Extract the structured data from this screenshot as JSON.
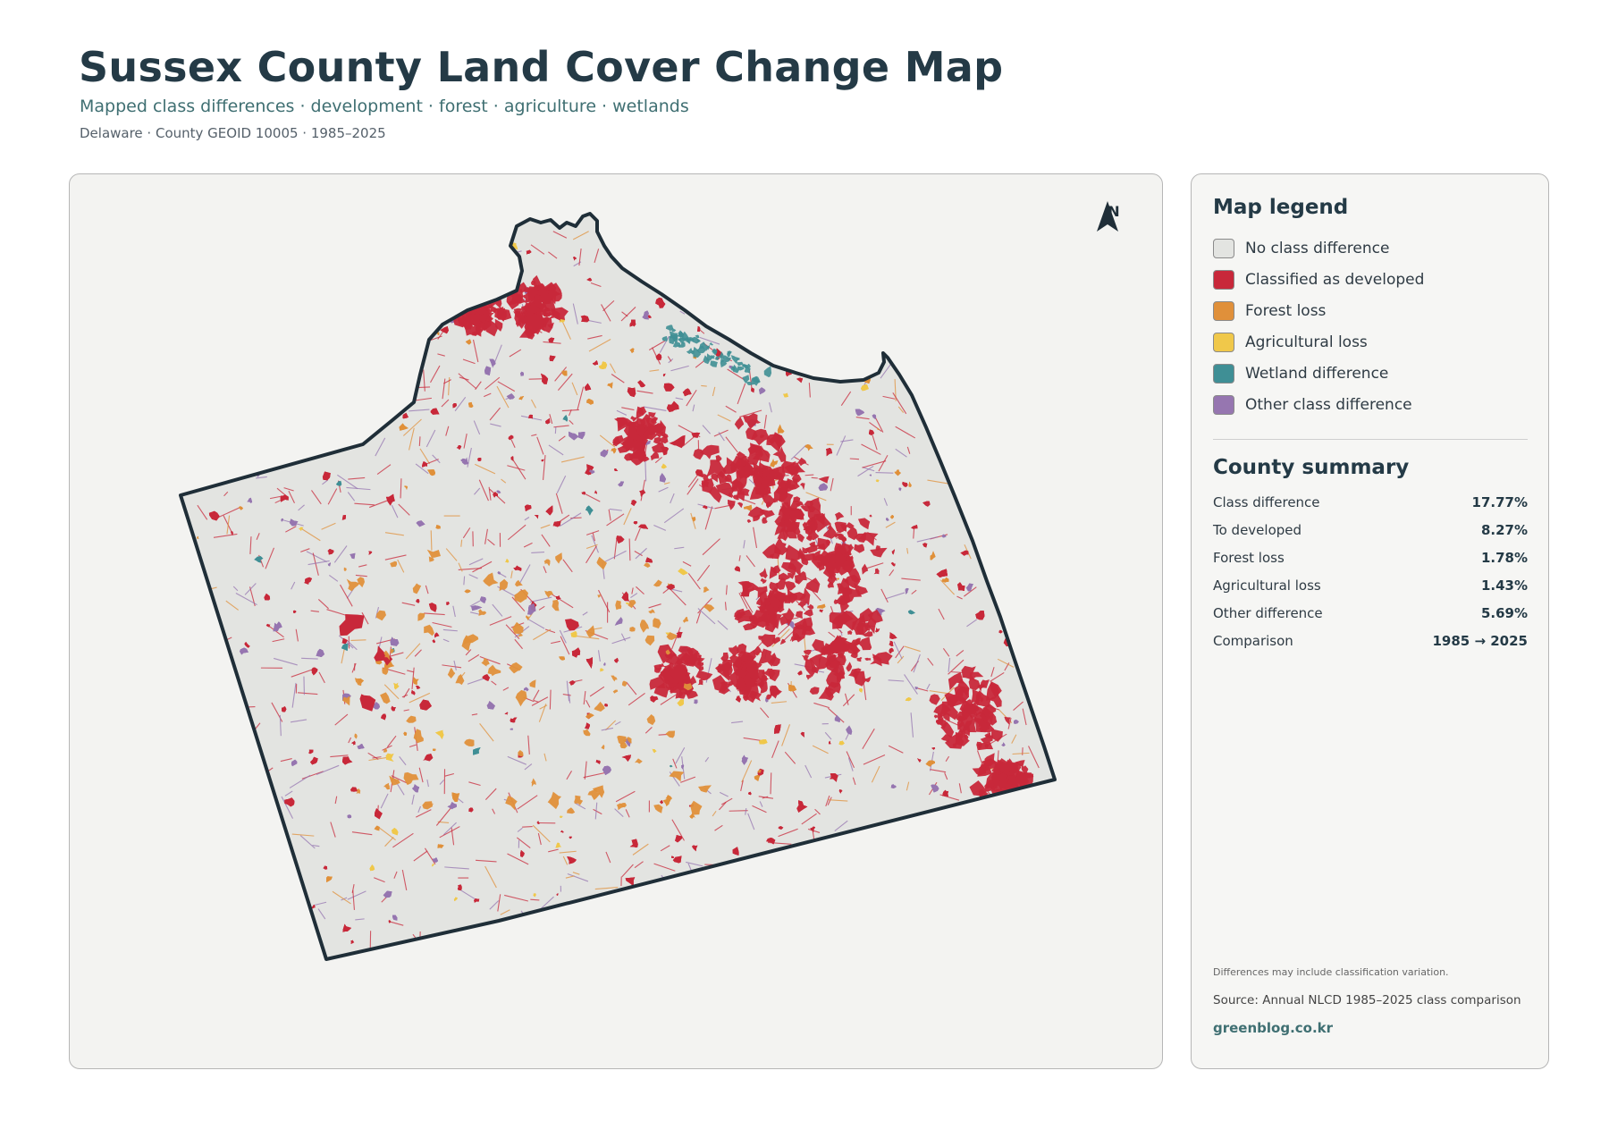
{
  "header": {
    "title": "Sussex County Land Cover Change Map",
    "subtitle": "Mapped class differences · development · forest · agriculture · wetlands",
    "meta": "Delaware · County GEOID 10005 · 1985–2025"
  },
  "map": {
    "north_label": "N",
    "north_icon": "north-arrow-icon",
    "outline_color": "#1f2e38",
    "fill_color": "#e3e4e1"
  },
  "legend": {
    "title": "Map legend",
    "items": [
      {
        "label": "No class difference",
        "color": "#e3e4e1"
      },
      {
        "label": "Classified as developed",
        "color": "#c8283a"
      },
      {
        "label": "Forest loss",
        "color": "#e0903a"
      },
      {
        "label": "Agricultural loss",
        "color": "#f0c84a"
      },
      {
        "label": "Wetland difference",
        "color": "#3f8f95"
      },
      {
        "label": "Other class difference",
        "color": "#9676b0"
      }
    ]
  },
  "summary": {
    "title": "County summary",
    "rows": [
      {
        "label": "Class difference",
        "value": "17.77%"
      },
      {
        "label": "To developed",
        "value": "8.27%"
      },
      {
        "label": "Forest loss",
        "value": "1.78%"
      },
      {
        "label": "Agricultural loss",
        "value": "1.43%"
      },
      {
        "label": "Other difference",
        "value": "5.69%"
      },
      {
        "label": "Comparison",
        "value": "1985 → 2025"
      }
    ]
  },
  "footer": {
    "note": "Differences may include classification variation.",
    "source": "Source: Annual NLCD 1985–2025 class comparison",
    "site": "greenblog.co.kr"
  }
}
